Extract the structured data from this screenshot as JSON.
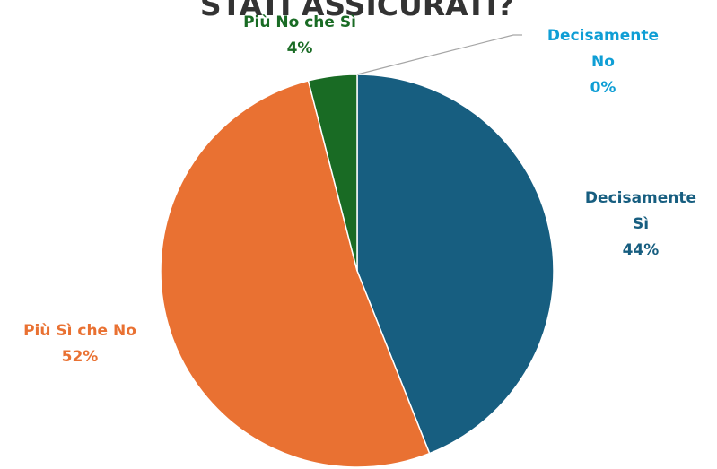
{
  "chart_data": {
    "type": "pie",
    "title": "STATI ASSICURATI?",
    "slices": [
      {
        "label": "Decisamente Sì",
        "label_lines": [
          "Decisamente",
          "Sì"
        ],
        "value": 44,
        "value_label": "44%",
        "color": "#175E80"
      },
      {
        "label": "Più Sì che No",
        "label_lines": [
          "Più Sì che No"
        ],
        "value": 52,
        "value_label": "52%",
        "color": "#E97132"
      },
      {
        "label": "Più No che Sì",
        "label_lines": [
          "Più No che Sì"
        ],
        "value": 4,
        "value_label": "4%",
        "color": "#196B24"
      },
      {
        "label": "Decisamente No",
        "label_lines": [
          "Decisamente",
          "No"
        ],
        "value": 0,
        "value_label": "0%",
        "color": "#0F9ED5"
      }
    ],
    "legend": "none",
    "data_labels": "outside"
  }
}
